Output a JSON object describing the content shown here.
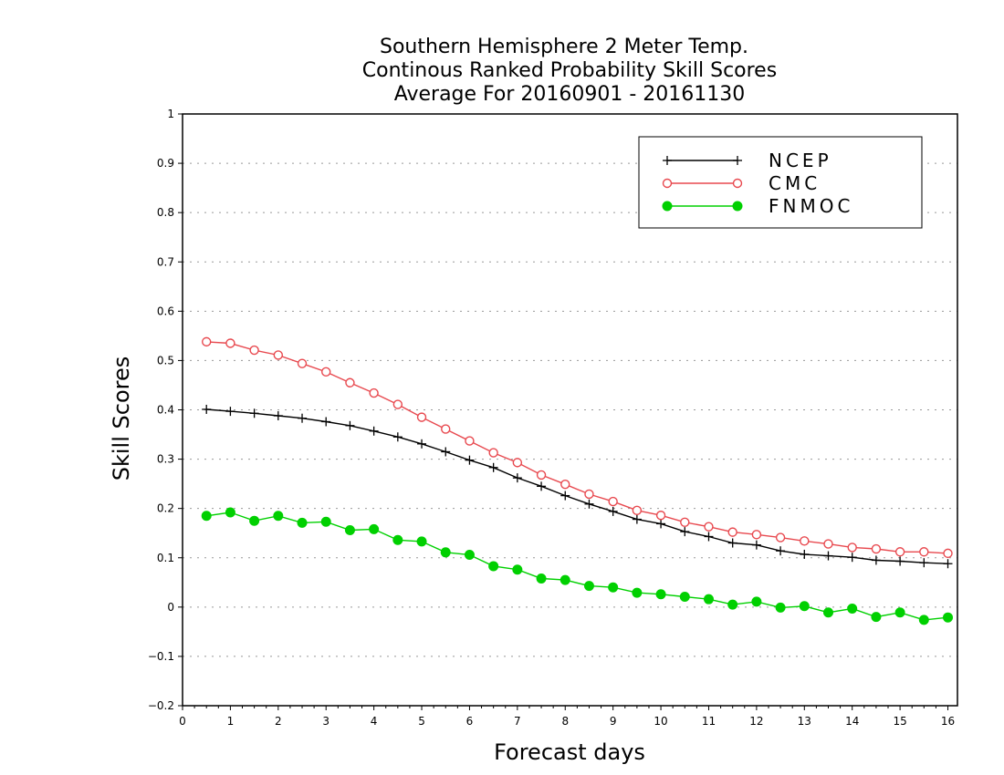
{
  "chart_data": {
    "type": "line",
    "title": [
      "Southern Hemisphere 2 Meter Temp.",
      "Continous Ranked Probability Skill Scores",
      "Average For 20160901 - 20161130"
    ],
    "xlabel": "Forecast days",
    "ylabel": "Skill Scores",
    "xlim": [
      0,
      16.2
    ],
    "ylim": [
      -0.2,
      1
    ],
    "xticks": [
      0,
      1,
      2,
      3,
      4,
      5,
      6,
      7,
      8,
      9,
      10,
      11,
      12,
      13,
      14,
      15,
      16
    ],
    "xtick_labels": [
      "0",
      "1",
      "2",
      "3",
      "4",
      "5",
      "6",
      "7",
      "8",
      "9",
      "10",
      "11",
      "12",
      "13",
      "14",
      "15",
      "16"
    ],
    "yticks": [
      -0.2,
      -0.1,
      0,
      0.1,
      0.2,
      0.3,
      0.4,
      0.5,
      0.6,
      0.7,
      0.8,
      0.9,
      1
    ],
    "ytick_labels": [
      "−0.2",
      "−0.1",
      "0",
      "0.1",
      "0.2",
      "0.3",
      "0.4",
      "0.5",
      "0.6",
      "0.7",
      "0.8",
      "0.9",
      "1"
    ],
    "grid": "horizontal-dotted",
    "legend_position": "top-right",
    "x": [
      0.5,
      1,
      1.5,
      2,
      2.5,
      3,
      3.5,
      4,
      4.5,
      5,
      5.5,
      6,
      6.5,
      7,
      7.5,
      8,
      8.5,
      9,
      9.5,
      10,
      10.5,
      11,
      11.5,
      12,
      12.5,
      13,
      13.5,
      14,
      14.5,
      15,
      15.5,
      16
    ],
    "series": [
      {
        "name": "NCEP",
        "color": "#000000",
        "marker": "plus",
        "values": [
          0.401,
          0.397,
          0.393,
          0.388,
          0.383,
          0.376,
          0.368,
          0.357,
          0.345,
          0.331,
          0.315,
          0.298,
          0.283,
          0.262,
          0.245,
          0.226,
          0.209,
          0.194,
          0.178,
          0.169,
          0.153,
          0.143,
          0.13,
          0.126,
          0.114,
          0.107,
          0.104,
          0.101,
          0.095,
          0.093,
          0.09,
          0.088
        ]
      },
      {
        "name": "CMC",
        "color": "#e8494f",
        "marker": "open-circle",
        "values": [
          0.538,
          0.535,
          0.521,
          0.511,
          0.494,
          0.477,
          0.455,
          0.434,
          0.411,
          0.385,
          0.361,
          0.337,
          0.313,
          0.293,
          0.268,
          0.249,
          0.229,
          0.214,
          0.196,
          0.186,
          0.172,
          0.163,
          0.152,
          0.147,
          0.141,
          0.134,
          0.128,
          0.121,
          0.118,
          0.112,
          0.112,
          0.109
        ]
      },
      {
        "name": "FNMOC",
        "color": "#00d000",
        "marker": "filled-circle",
        "values": [
          0.185,
          0.192,
          0.175,
          0.185,
          0.171,
          0.173,
          0.156,
          0.158,
          0.136,
          0.133,
          0.111,
          0.106,
          0.083,
          0.076,
          0.058,
          0.055,
          0.043,
          0.04,
          0.029,
          0.026,
          0.021,
          0.016,
          0.005,
          0.011,
          -0.001,
          0.002,
          -0.011,
          -0.003,
          -0.02,
          -0.011,
          -0.026,
          -0.021
        ]
      }
    ]
  }
}
